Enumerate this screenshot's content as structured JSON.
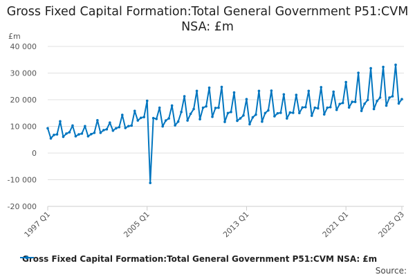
{
  "chart_data": {
    "type": "line",
    "title": "Gross Fixed Capital Formation:Total General Government P51:CVM NSA: £m",
    "ylabel": "£m",
    "ylim": [
      -20000,
      40000
    ],
    "yticks": [
      40000,
      30000,
      20000,
      10000,
      0,
      -10000,
      -20000
    ],
    "ytick_labels": [
      "40 000",
      "30 000",
      "20 000",
      "10 000",
      "0",
      "-10 000",
      "-20 000"
    ],
    "xtick_labels": [
      "1997 Q1",
      "2005 Q1",
      "2013 Q1",
      "2021 Q1",
      "2025 Q3"
    ],
    "xtick_index": [
      0,
      32,
      64,
      96,
      114
    ],
    "start": "1997 Q1",
    "end": "2025 Q3",
    "grid": true,
    "legend_position": "bottom",
    "series": [
      {
        "name": "Gross Fixed Capital Formation:Total General Government P51:CVM NSA: £m",
        "color": "#0075bf",
        "values": [
          9300,
          5500,
          6800,
          7000,
          11900,
          6100,
          7300,
          7800,
          10300,
          6300,
          7000,
          7300,
          10100,
          6300,
          7100,
          7600,
          12300,
          7600,
          8600,
          8900,
          11400,
          8400,
          9300,
          9700,
          14300,
          9400,
          10100,
          10300,
          15800,
          12200,
          13200,
          13500,
          19600,
          -11200,
          13100,
          12800,
          17000,
          10000,
          12200,
          13000,
          17800,
          10400,
          11800,
          15400,
          21300,
          12200,
          14700,
          16500,
          23300,
          12700,
          17000,
          17500,
          24500,
          13600,
          16900,
          17000,
          24800,
          11700,
          15000,
          15400,
          22700,
          12100,
          13000,
          14100,
          20200,
          10800,
          13400,
          14400,
          23300,
          11800,
          15000,
          16000,
          23400,
          13800,
          14900,
          15100,
          22000,
          13000,
          15200,
          15100,
          21800,
          15000,
          17100,
          17200,
          23300,
          14000,
          17000,
          16800,
          24700,
          14500,
          17000,
          17200,
          23000,
          16200,
          18400,
          18800,
          26600,
          17100,
          19200,
          19200,
          30100,
          15800,
          18500,
          19900,
          31800,
          16500,
          19500,
          20800,
          32300,
          17800,
          20800,
          21300,
          33100,
          18600,
          20200
        ]
      }
    ]
  },
  "source_label": "Source:"
}
